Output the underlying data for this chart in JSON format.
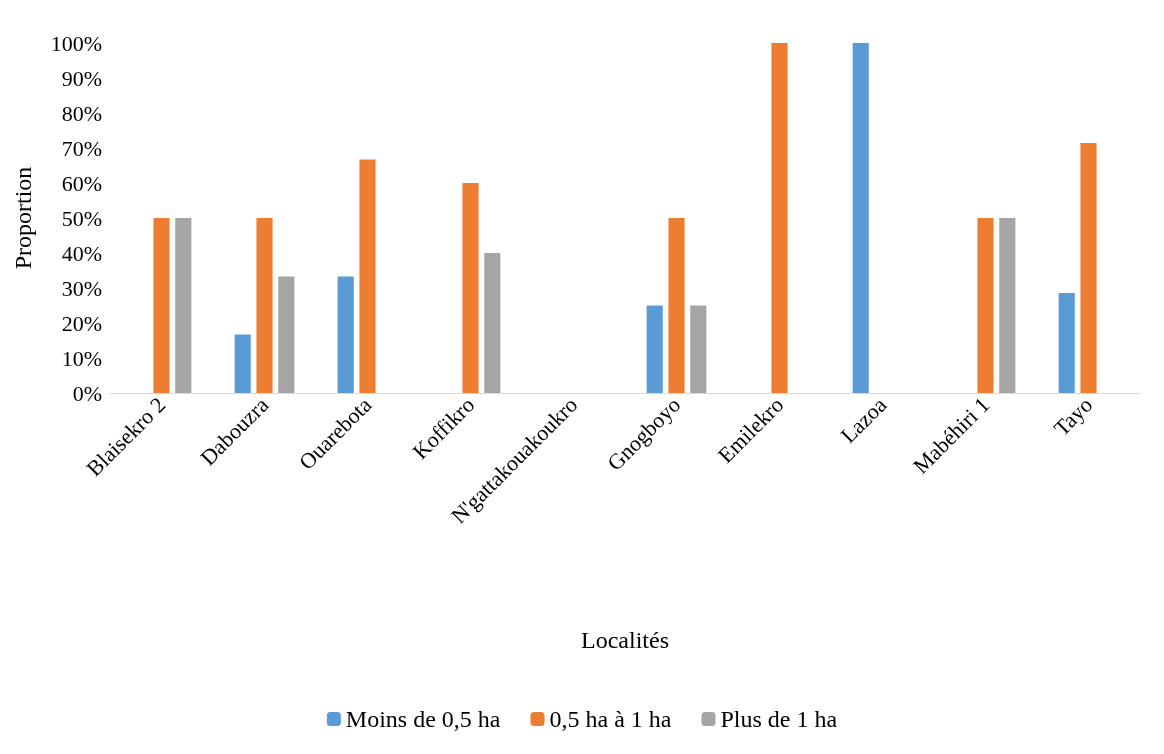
{
  "chart_data": {
    "type": "bar",
    "xlabel": "Localités",
    "ylabel": "Proportion",
    "categories": [
      "Blaisekro 2",
      "Dabouzra",
      "Ouarebota",
      "Koffikro",
      "N'gattakouakoukro",
      "Gnogboyo",
      "Emilekro",
      "Lazoa",
      "Mabéhiri 1",
      "Tayo"
    ],
    "series": [
      {
        "name": "Moins de 0,5 ha",
        "color": "#5b9bd5",
        "values": [
          0,
          16.7,
          33.3,
          0,
          0,
          25,
          0,
          100,
          0,
          28.6
        ]
      },
      {
        "name": "0,5 ha à 1 ha",
        "color": "#ed7d31",
        "values": [
          50,
          50,
          66.7,
          60,
          0,
          50,
          100,
          0,
          50,
          71.4
        ]
      },
      {
        "name": "Plus de 1 ha",
        "color": "#a5a5a5",
        "values": [
          50,
          33.3,
          0,
          40,
          0,
          25,
          0,
          0,
          50,
          0
        ]
      }
    ],
    "ylim": [
      0,
      100
    ],
    "yticks": [
      {
        "value": 0,
        "label": "0%"
      },
      {
        "value": 10,
        "label": "10%"
      },
      {
        "value": 20,
        "label": "20%"
      },
      {
        "value": 30,
        "label": "30%"
      },
      {
        "value": 40,
        "label": "40%"
      },
      {
        "value": 50,
        "label": "50%"
      },
      {
        "value": 60,
        "label": "60%"
      },
      {
        "value": 70,
        "label": "70%"
      },
      {
        "value": 80,
        "label": "80%"
      },
      {
        "value": 90,
        "label": "90%"
      },
      {
        "value": 100,
        "label": "100%"
      }
    ],
    "grid": false,
    "legend": "bottom"
  }
}
